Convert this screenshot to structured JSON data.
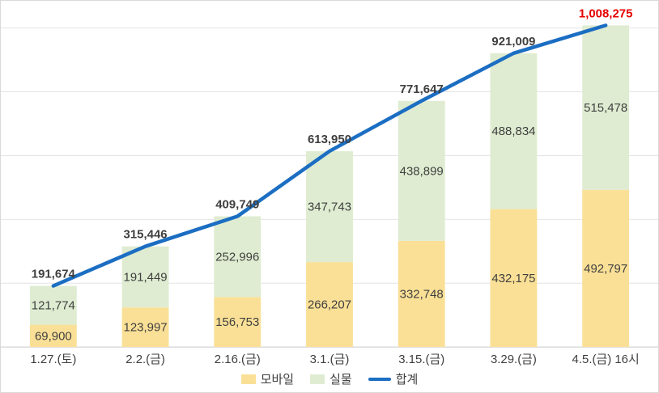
{
  "chart_data": {
    "type": "bar",
    "subtype": "stacked-bar-with-line",
    "categories": [
      "1.27.(토)",
      "2.2.(금)",
      "2.16.(금)",
      "3.1.(금)",
      "3.15.(금)",
      "3.29.(금)",
      "4.5.(금) 16시"
    ],
    "series": [
      {
        "name": "모바일",
        "type": "bar",
        "color": "#FAE096",
        "values": [
          69900,
          123997,
          156753,
          266207,
          332748,
          432175,
          492797
        ]
      },
      {
        "name": "실물",
        "type": "bar",
        "color": "#DFECD1",
        "values": [
          121774,
          191449,
          252996,
          347743,
          438899,
          488834,
          515478
        ]
      },
      {
        "name": "합계",
        "type": "line",
        "color": "#1B6EC2",
        "values": [
          191674,
          315446,
          409749,
          613950,
          771647,
          921009,
          1008275
        ]
      }
    ],
    "stacked": true,
    "title": "",
    "xlabel": "",
    "ylabel": "",
    "ylim": [
      0,
      1050000
    ],
    "y_grid": {
      "interval": 200000,
      "max": 1000000
    },
    "grid": true,
    "legend_position": "bottom",
    "label_color": "#3F3F3F",
    "last_total_color": "#E60000"
  }
}
